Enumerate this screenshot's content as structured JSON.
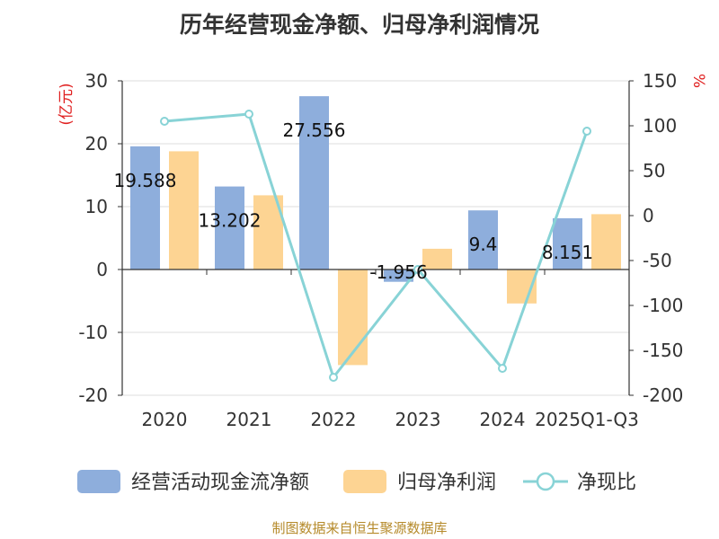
{
  "title": "历年经营现金净额、归母净利润情况",
  "source": "制图数据来自恒生聚源数据库",
  "left_unit": "(亿元)",
  "right_unit": "%",
  "colors": {
    "cash": "#8eaedc",
    "profit": "#fdd493",
    "ratio": "#88d3d6",
    "unit": "#e02020",
    "source": "#b58a2a"
  },
  "chart_data": {
    "type": "bar",
    "title": "历年经营现金净额、归母净利润情况",
    "categories": [
      "2020",
      "2021",
      "2022",
      "2023",
      "2024",
      "2025Q1-Q3"
    ],
    "series": [
      {
        "name": "经营活动现金流净额",
        "type": "bar",
        "axis": "left",
        "values": [
          19.588,
          13.202,
          27.556,
          -1.956,
          9.4,
          8.151
        ],
        "labels": [
          "19.588",
          "13.202",
          "27.556",
          "-1.956",
          "9.4",
          "8.151"
        ]
      },
      {
        "name": "归母净利润",
        "type": "bar",
        "axis": "left",
        "values": [
          18.8,
          11.8,
          -15.2,
          3.3,
          -5.4,
          8.8
        ]
      },
      {
        "name": "净现比",
        "type": "line",
        "axis": "right",
        "values": [
          105,
          113,
          -180,
          -60,
          -170,
          94
        ]
      }
    ],
    "y_left": {
      "min": -20,
      "max": 30,
      "ticks": [
        "30",
        "20",
        "10",
        "0",
        "-10",
        "-20"
      ]
    },
    "y_right": {
      "min": -200,
      "max": 150,
      "ticks": [
        "150",
        "100",
        "50",
        "0",
        "-50",
        "-100",
        "-150",
        "-200"
      ]
    }
  }
}
